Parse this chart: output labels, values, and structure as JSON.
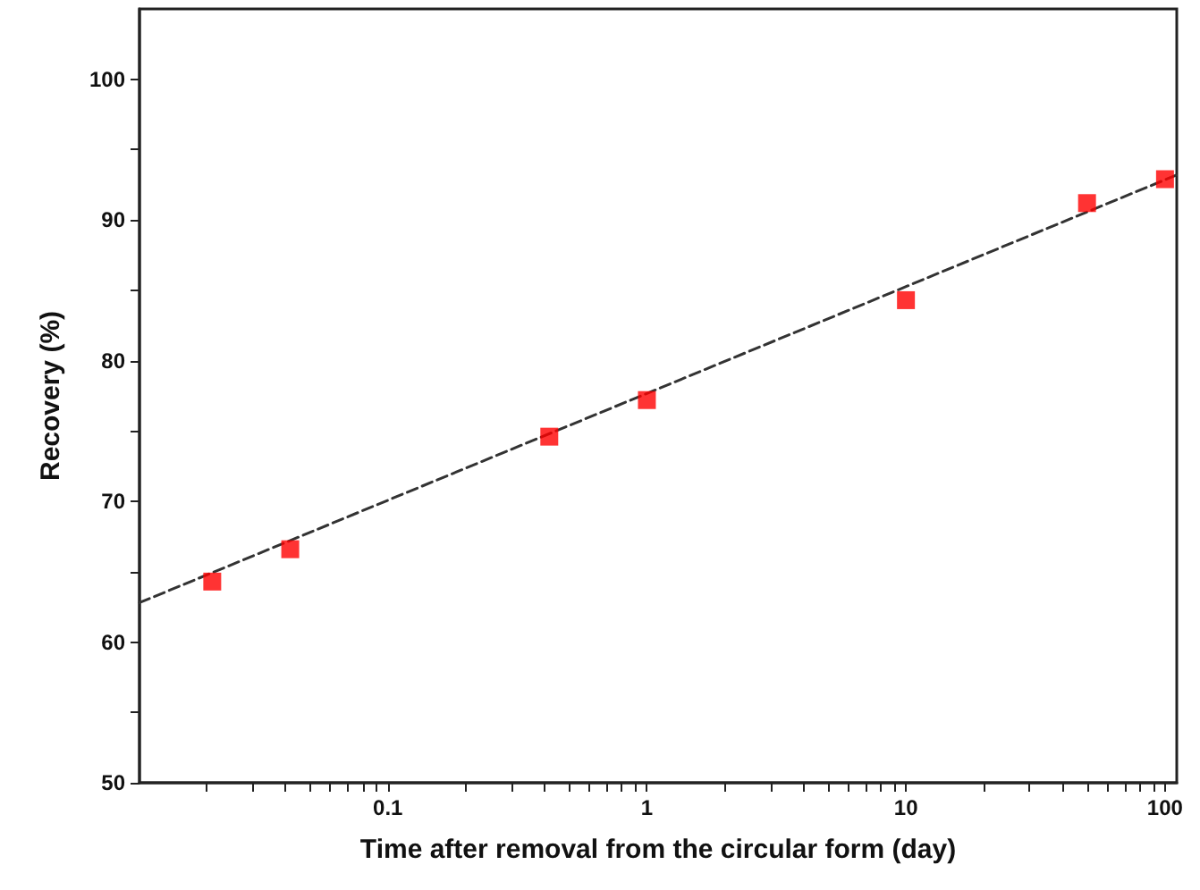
{
  "chart_data": {
    "type": "scatter",
    "xlabel": "Time after removal from the circular form (day)",
    "ylabel": "Recovery (%)",
    "log": "x",
    "xlim": [
      0.011,
      111
    ],
    "ylim": [
      50,
      105
    ],
    "xticks": [
      {
        "value": 0.02,
        "label": null
      },
      {
        "value": 0.03,
        "label": null
      },
      {
        "value": 0.04,
        "label": null
      },
      {
        "value": 0.05,
        "label": null
      },
      {
        "value": 0.06,
        "label": null
      },
      {
        "value": 0.07,
        "label": null
      },
      {
        "value": 0.08,
        "label": null
      },
      {
        "value": 0.09,
        "label": null
      },
      0.1,
      {
        "value": 0.2,
        "label": null
      },
      {
        "value": 0.3,
        "label": null
      },
      {
        "value": 0.4,
        "label": null
      },
      {
        "value": 0.5,
        "label": null
      },
      {
        "value": 0.6,
        "label": null
      },
      {
        "value": 0.7,
        "label": null
      },
      {
        "value": 0.8,
        "label": null
      },
      {
        "value": 0.9,
        "label": null
      },
      1,
      {
        "value": 2,
        "label": null
      },
      {
        "value": 3,
        "label": null
      },
      {
        "value": 4,
        "label": null
      },
      {
        "value": 5,
        "label": null
      },
      {
        "value": 6,
        "label": null
      },
      {
        "value": 7,
        "label": null
      },
      {
        "value": 8,
        "label": null
      },
      {
        "value": 9,
        "label": null
      },
      10,
      {
        "value": 20,
        "label": null
      },
      {
        "value": 30,
        "label": null
      },
      {
        "value": 40,
        "label": null
      },
      {
        "value": 50,
        "label": null
      },
      {
        "value": 60,
        "label": null
      },
      {
        "value": 70,
        "label": null
      },
      {
        "value": 80,
        "label": null
      },
      {
        "value": 90,
        "label": null
      },
      100
    ],
    "yticks": [
      50,
      {
        "value": 55,
        "label": null
      },
      60,
      {
        "value": 65,
        "label": null
      },
      70,
      {
        "value": 75,
        "label": null
      },
      80,
      {
        "value": 85,
        "label": null
      },
      90,
      {
        "value": 95,
        "label": null
      },
      100
    ],
    "grid": false,
    "series": [
      {
        "color": "#ff0000",
        "marker": "square",
        "x": [
          0.021,
          0.042,
          0.42,
          1,
          10,
          50,
          100
        ],
        "values": [
          64.3,
          66.6,
          74.6,
          77.2,
          84.3,
          91.2,
          92.9
        ]
      },
      {
        "type": "line",
        "color": "#333333",
        "line_style": "dashed",
        "marker": "none",
        "x": [
          0.011,
          111
        ],
        "values": [
          62.8,
          93.2
        ]
      }
    ]
  }
}
